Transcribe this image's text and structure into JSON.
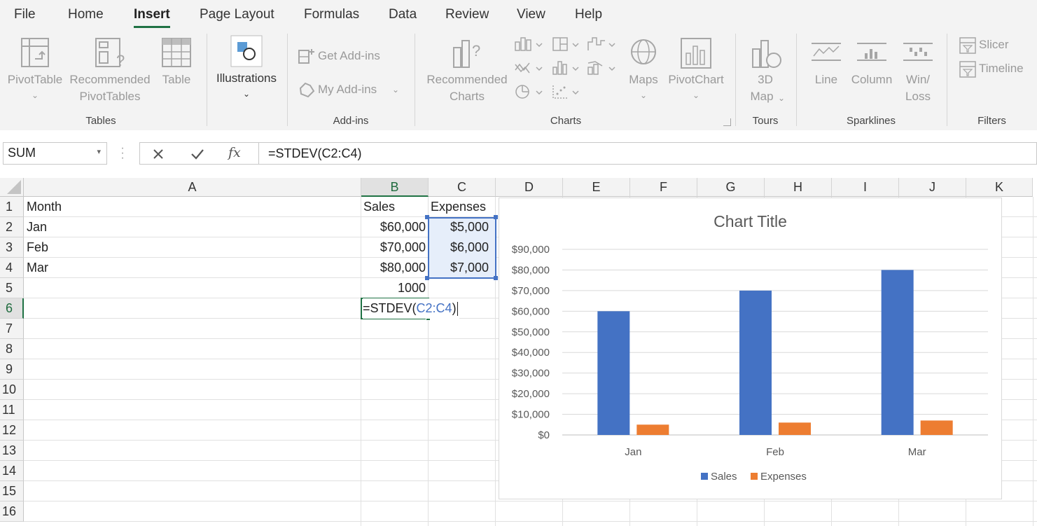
{
  "menu": {
    "items": [
      "File",
      "Home",
      "Insert",
      "Page Layout",
      "Formulas",
      "Data",
      "Review",
      "View",
      "Help"
    ],
    "active": "Insert"
  },
  "ribbon": {
    "tables": {
      "pivottable": "PivotTable",
      "recommended_line1": "Recommended",
      "recommended_line2": "PivotTables",
      "table": "Table",
      "group": "Tables"
    },
    "illustrations": {
      "label": "Illustrations"
    },
    "addins": {
      "get": "Get Add-ins",
      "my": "My Add-ins",
      "group": "Add-ins"
    },
    "charts": {
      "recommended_line1": "Recommended",
      "recommended_line2": "Charts",
      "maps": "Maps",
      "pivotchart": "PivotChart",
      "group": "Charts"
    },
    "tours": {
      "line1": "3D",
      "line2": "Map",
      "group": "Tours"
    },
    "sparklines": {
      "line": "Line",
      "column": "Column",
      "winloss_line1": "Win/",
      "winloss_line2": "Loss",
      "group": "Sparklines"
    },
    "filters": {
      "slicer": "Slicer",
      "timeline": "Timeline",
      "group": "Filters"
    }
  },
  "formula_bar": {
    "name_box": "SUM",
    "formula": "=STDEV(C2:C4)",
    "fx": "fx"
  },
  "sheet": {
    "columns": [
      "A",
      "B",
      "C",
      "D",
      "E",
      "F",
      "G",
      "H",
      "I",
      "J",
      "K"
    ],
    "rows": [
      "1",
      "2",
      "3",
      "4",
      "5",
      "6",
      "7",
      "8",
      "9",
      "10",
      "11",
      "12",
      "13",
      "14",
      "15",
      "16"
    ],
    "cells": {
      "A1": "Month",
      "B1": "Sales",
      "C1": "Expenses",
      "A2": "Jan",
      "B2": "$60,000",
      "C2": "$5,000",
      "A3": "Feb",
      "B3": "$70,000",
      "C3": "$6,000",
      "A4": "Mar",
      "B4": "$80,000",
      "C4": "$7,000",
      "B5": "1000",
      "B6_prefix": "=STDEV(",
      "B6_ref": "C2:C4",
      "B6_suffix": ")"
    }
  },
  "chart_data": {
    "type": "bar",
    "title": "Chart Title",
    "categories": [
      "Jan",
      "Feb",
      "Mar"
    ],
    "series": [
      {
        "name": "Sales",
        "values": [
          60000,
          70000,
          80000
        ],
        "color": "#4472c4"
      },
      {
        "name": "Expenses",
        "values": [
          5000,
          6000,
          7000
        ],
        "color": "#ed7d31"
      }
    ],
    "ylim": [
      0,
      90000
    ],
    "yticks": [
      "$0",
      "$10,000",
      "$20,000",
      "$30,000",
      "$40,000",
      "$50,000",
      "$60,000",
      "$70,000",
      "$80,000",
      "$90,000"
    ],
    "grid": true,
    "legend": "bottom"
  }
}
